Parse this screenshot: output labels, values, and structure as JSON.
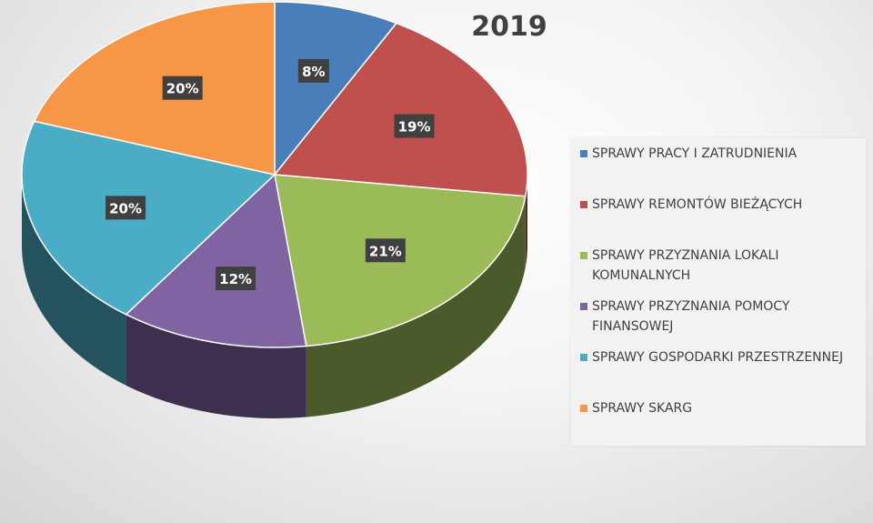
{
  "chart_data": {
    "type": "pie",
    "title": "2019",
    "categories": [
      "SPRAWY PRACY I ZATRUDNIENIA",
      "SPRAWY REMONTÓW BIEŻĄCYCH",
      "SPRAWY PRZYZNANIA LOKALI KOMUNALNYCH",
      "SPRAWY PRZYZNANIA POMOCY FINANSOWEJ",
      "SPRAWY GOSPODARKI PRZESTRZENNEJ",
      "SPRAWY SKARG"
    ],
    "values": [
      8,
      19,
      21,
      12,
      20,
      20
    ],
    "data_labels": [
      "8%",
      "19%",
      "21%",
      "12%",
      "20%",
      "20%"
    ],
    "colors": [
      "#4a7ebb",
      "#c0504d",
      "#9bbb59",
      "#8064a2",
      "#4bacc6",
      "#f79646"
    ],
    "legend_position": "right",
    "style": "3d"
  },
  "legend": {
    "items": [
      {
        "label": "SPRAWY PRACY I ZATRUDNIENIA",
        "color": "#4a7ebb"
      },
      {
        "label": "SPRAWY REMONTÓW BIEŻĄCYCH",
        "color": "#c0504d"
      },
      {
        "label": "SPRAWY PRZYZNANIA LOKALI KOMUNALNYCH",
        "color": "#9bbb59"
      },
      {
        "label": "SPRAWY PRZYZNANIA POMOCY FINANSOWEJ",
        "color": "#8064a2"
      },
      {
        "label": "SPRAWY GOSPODARKI PRZESTRZENNEJ",
        "color": "#4bacc6"
      },
      {
        "label": "SPRAWY SKARG",
        "color": "#f79646"
      }
    ]
  }
}
